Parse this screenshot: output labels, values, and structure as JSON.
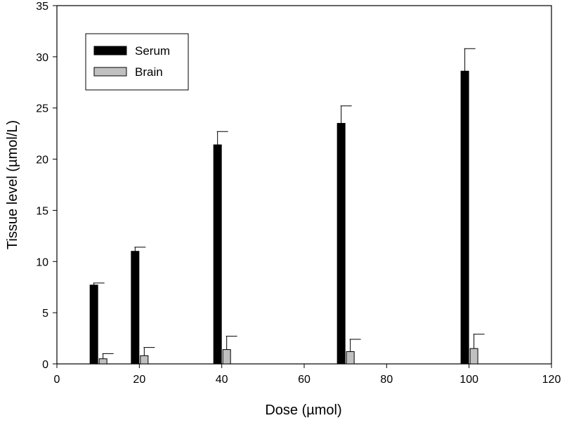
{
  "chart_data": {
    "type": "bar",
    "title": "",
    "xlabel": "Dose (µmol)",
    "ylabel": "Tissue level (µmol/L)",
    "xlim": [
      0,
      120
    ],
    "ylim": [
      0,
      35
    ],
    "xticks": [
      0,
      20,
      40,
      60,
      80,
      100,
      120
    ],
    "yticks": [
      0,
      5,
      10,
      15,
      20,
      25,
      30,
      35
    ],
    "x": [
      10,
      20,
      40,
      70,
      100
    ],
    "series": [
      {
        "name": "Serum",
        "color": "#000000",
        "values": [
          7.7,
          11.0,
          21.4,
          23.5,
          28.6
        ],
        "errors": [
          0.2,
          0.4,
          1.3,
          1.7,
          2.2
        ]
      },
      {
        "name": "Brain",
        "color": "#c0c0c0",
        "values": [
          0.5,
          0.8,
          1.4,
          1.2,
          1.5
        ],
        "errors": [
          0.5,
          0.8,
          1.3,
          1.2,
          1.4
        ]
      }
    ],
    "legend": "top-left",
    "grid": false
  }
}
